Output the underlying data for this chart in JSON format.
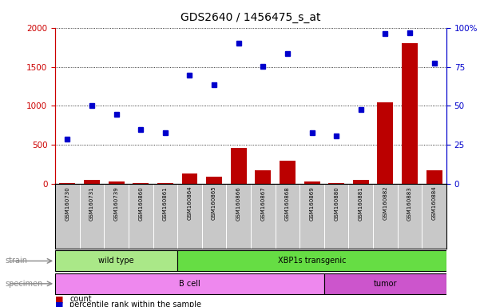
{
  "title": "GDS2640 / 1456475_s_at",
  "samples": [
    "GSM160730",
    "GSM160731",
    "GSM160739",
    "GSM160860",
    "GSM160861",
    "GSM160864",
    "GSM160865",
    "GSM160866",
    "GSM160867",
    "GSM160868",
    "GSM160869",
    "GSM160880",
    "GSM160881",
    "GSM160882",
    "GSM160883",
    "GSM160884"
  ],
  "count": [
    15,
    60,
    30,
    10,
    10,
    140,
    100,
    460,
    175,
    305,
    30,
    15,
    60,
    1050,
    1800,
    175
  ],
  "percentile": [
    28.75,
    50.5,
    44.5,
    35.0,
    33.0,
    69.5,
    63.5,
    90.0,
    75.5,
    83.5,
    33.0,
    30.75,
    47.5,
    96.0,
    96.5,
    77.25
  ],
  "left_ylim": [
    0,
    2000
  ],
  "left_yticks": [
    0,
    500,
    1000,
    1500,
    2000
  ],
  "right_ylim": [
    0,
    100
  ],
  "right_yticks": [
    0,
    25,
    50,
    75,
    100
  ],
  "bar_color": "#bb0000",
  "dot_color": "#0000cc",
  "strain_groups": [
    {
      "label": "wild type",
      "start": 0,
      "end": 5,
      "color": "#aae888"
    },
    {
      "label": "XBP1s transgenic",
      "start": 5,
      "end": 16,
      "color": "#66dd44"
    }
  ],
  "specimen_groups": [
    {
      "label": "B cell",
      "start": 0,
      "end": 11,
      "color": "#ee88ee"
    },
    {
      "label": "tumor",
      "start": 11,
      "end": 16,
      "color": "#cc55cc"
    }
  ],
  "strain_label": "strain",
  "specimen_label": "specimen",
  "legend_count_label": "count",
  "legend_pct_label": "percentile rank within the sample",
  "tick_label_color": "#cc0000",
  "right_axis_color": "#0000cc",
  "xbar_color": "#c8c8c8",
  "bg_color": "#ffffff"
}
